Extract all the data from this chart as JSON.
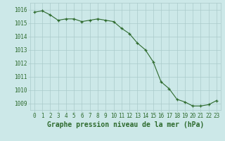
{
  "x": [
    0,
    1,
    2,
    3,
    4,
    5,
    6,
    7,
    8,
    9,
    10,
    11,
    12,
    13,
    14,
    15,
    16,
    17,
    18,
    19,
    20,
    21,
    22,
    23
  ],
  "y": [
    1015.8,
    1015.9,
    1015.6,
    1015.2,
    1015.3,
    1015.3,
    1015.1,
    1015.2,
    1015.3,
    1015.2,
    1015.1,
    1014.6,
    1014.2,
    1013.5,
    1013.0,
    1012.1,
    1010.6,
    1010.1,
    1009.3,
    1009.1,
    1008.8,
    1008.8,
    1008.9,
    1009.2
  ],
  "line_color": "#2d6a2d",
  "marker": "+",
  "marker_color": "#2d6a2d",
  "bg_color": "#cce8e8",
  "grid_color": "#aacaca",
  "axis_label_color": "#2d6a2d",
  "tick_label_color": "#2d6a2d",
  "xlabel": "Graphe pression niveau de la mer (hPa)",
  "ylim_min": 1008.5,
  "ylim_max": 1016.5,
  "yticks": [
    1009,
    1010,
    1011,
    1012,
    1013,
    1014,
    1015,
    1016
  ],
  "xticks": [
    0,
    1,
    2,
    3,
    4,
    5,
    6,
    7,
    8,
    9,
    10,
    11,
    12,
    13,
    14,
    15,
    16,
    17,
    18,
    19,
    20,
    21,
    22,
    23
  ],
  "tick_fontsize": 5.5,
  "label_fontsize": 7.0
}
